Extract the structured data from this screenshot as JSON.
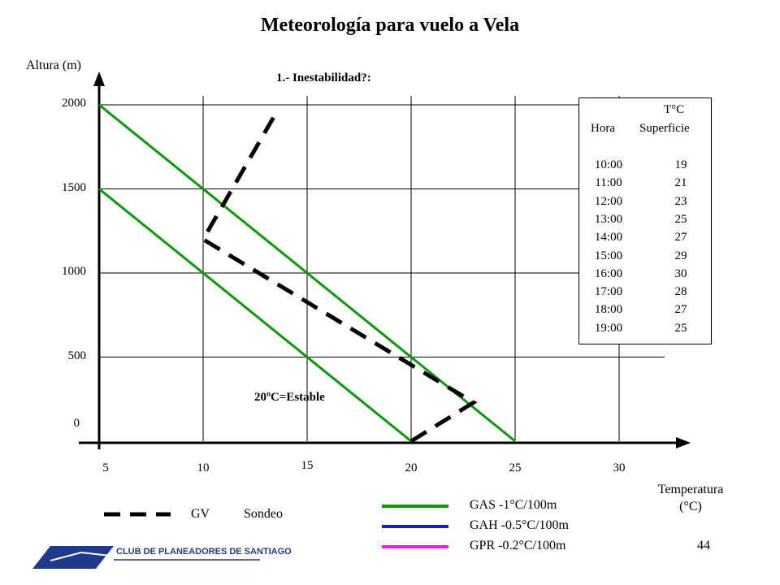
{
  "page": {
    "title": "Meteorología para vuelo a Vela",
    "page_number": "44"
  },
  "logo": {
    "text": "CLUB DE PLANEADORES DE SANTIAGO"
  },
  "chart_data": {
    "type": "line",
    "title": "1.- Inestabilidad?:",
    "xlabel_line1": "Temperatura",
    "xlabel_line2": "(°C)",
    "ylabel": "Altura (m)",
    "xlim": [
      5,
      30
    ],
    "ylim": [
      0,
      2000
    ],
    "x_ticks": [
      5,
      10,
      15,
      20,
      25,
      30
    ],
    "y_ticks": [
      0,
      500,
      1000,
      1500,
      2000
    ],
    "grid": true,
    "series": [
      {
        "name": "GAS -1°C/100m",
        "color": "#0a9a0a",
        "style": "solid",
        "points": [
          [
            5,
            2000
          ],
          [
            25,
            0
          ]
        ]
      },
      {
        "name": "GAS -1°C/100m",
        "color": "#0a9a0a",
        "style": "solid",
        "points": [
          [
            5,
            1500
          ],
          [
            20,
            0
          ]
        ]
      },
      {
        "name": "Sondeo",
        "color": "#000000",
        "style": "dashed",
        "points": [
          [
            20,
            0
          ],
          [
            23,
            230
          ],
          [
            10,
            1200
          ],
          [
            13.5,
            1950
          ]
        ]
      }
    ],
    "annotations": [
      {
        "text": "20ºC=Estable"
      }
    ]
  },
  "table": {
    "header_col1": "Hora",
    "header_col2_line1": "T°C",
    "header_col2_line2": "Superficie",
    "rows": [
      {
        "hora": "10:00",
        "temp": "19"
      },
      {
        "hora": "11:00",
        "temp": "21"
      },
      {
        "hora": "12:00",
        "temp": "23"
      },
      {
        "hora": "13:00",
        "temp": "25"
      },
      {
        "hora": "14:00",
        "temp": "27"
      },
      {
        "hora": "15:00",
        "temp": "29"
      },
      {
        "hora": "16:00",
        "temp": "30"
      },
      {
        "hora": "17:00",
        "temp": "28"
      },
      {
        "hora": "18:00",
        "temp": "27"
      },
      {
        "hora": "19:00",
        "temp": "25"
      }
    ]
  },
  "legend": {
    "gv": "GV",
    "sondeo": "Sondeo",
    "items": [
      {
        "label": "GAS  -1°C/100m",
        "color": "#0a9a0a"
      },
      {
        "label": "GAH  -0.5°C/100m",
        "color": "#1a1ad8"
      },
      {
        "label": "GPR  -0.2°C/100m",
        "color": "#e81ee8"
      }
    ]
  }
}
